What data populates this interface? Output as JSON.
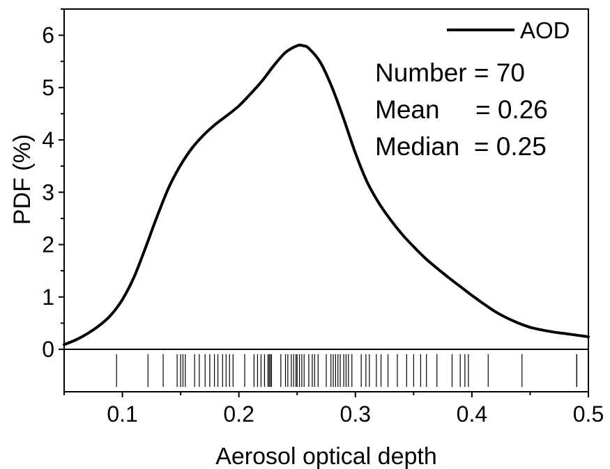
{
  "chart_data": {
    "type": "line",
    "title": "",
    "xlabel": "Aerosol optical depth",
    "ylabel": "PDF (%)",
    "xlim": [
      0.05,
      0.5
    ],
    "ylim": [
      0,
      6.5
    ],
    "xticks": [
      "0.1",
      "0.2",
      "0.3",
      "0.4",
      "0.5"
    ],
    "yticks": [
      "0",
      "1",
      "2",
      "3",
      "4",
      "5",
      "6"
    ],
    "legend_position": "top-right",
    "series": [
      {
        "name": "AOD",
        "color": "#000000",
        "x": [
          0.05,
          0.06,
          0.07,
          0.08,
          0.09,
          0.1,
          0.11,
          0.12,
          0.13,
          0.14,
          0.15,
          0.16,
          0.17,
          0.18,
          0.19,
          0.2,
          0.21,
          0.22,
          0.23,
          0.24,
          0.25,
          0.255,
          0.26,
          0.27,
          0.28,
          0.29,
          0.3,
          0.31,
          0.32,
          0.33,
          0.34,
          0.35,
          0.36,
          0.37,
          0.38,
          0.39,
          0.4,
          0.41,
          0.42,
          0.43,
          0.44,
          0.45,
          0.46,
          0.47,
          0.48,
          0.49,
          0.5
        ],
        "y": [
          0.09,
          0.18,
          0.3,
          0.45,
          0.65,
          0.95,
          1.38,
          1.95,
          2.55,
          3.1,
          3.52,
          3.85,
          4.1,
          4.3,
          4.47,
          4.65,
          4.88,
          5.13,
          5.42,
          5.67,
          5.8,
          5.8,
          5.75,
          5.48,
          5.0,
          4.4,
          3.75,
          3.2,
          2.8,
          2.48,
          2.2,
          1.96,
          1.74,
          1.55,
          1.37,
          1.2,
          1.03,
          0.87,
          0.72,
          0.6,
          0.5,
          0.42,
          0.37,
          0.33,
          0.3,
          0.27,
          0.24
        ]
      }
    ],
    "rug": [
      0.095,
      0.122,
      0.135,
      0.147,
      0.15,
      0.152,
      0.154,
      0.162,
      0.166,
      0.171,
      0.175,
      0.179,
      0.182,
      0.186,
      0.189,
      0.192,
      0.195,
      0.205,
      0.213,
      0.216,
      0.219,
      0.222,
      0.225,
      0.226,
      0.227,
      0.228,
      0.236,
      0.24,
      0.242,
      0.245,
      0.247,
      0.249,
      0.25,
      0.252,
      0.254,
      0.256,
      0.26,
      0.263,
      0.265,
      0.268,
      0.275,
      0.279,
      0.281,
      0.283,
      0.285,
      0.287,
      0.29,
      0.292,
      0.294,
      0.297,
      0.305,
      0.309,
      0.312,
      0.318,
      0.322,
      0.328,
      0.336,
      0.344,
      0.35,
      0.356,
      0.361,
      0.37,
      0.383,
      0.39,
      0.394,
      0.397,
      0.414,
      0.443,
      0.49,
      0.49
    ],
    "annotations": {
      "number_line": "Number = 70",
      "mean_line": "Mean     = 0.26",
      "median_line": "Median  = 0.25"
    }
  }
}
